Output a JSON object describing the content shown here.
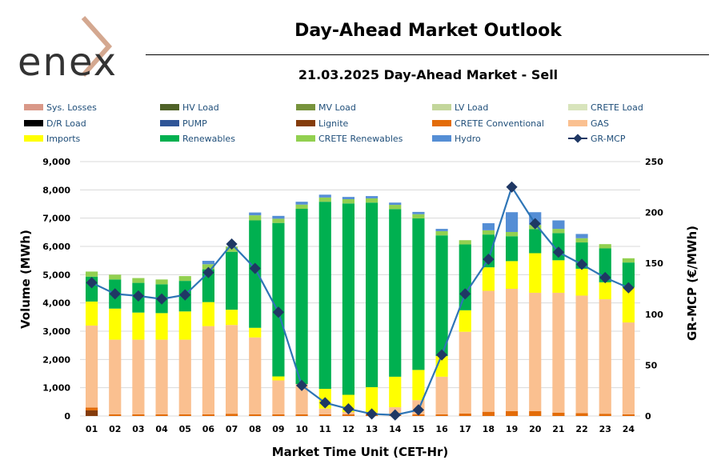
{
  "header": {
    "logo_text": "enex",
    "title": "Day-Ahead Market Outlook",
    "subtitle": "21.03.2025  Day-Ahead Market - Sell"
  },
  "chart_data": {
    "type": "bar",
    "title": "21.03.2025  Day-Ahead Market - Sell",
    "xlabel": "Market Time Unit (CET-Hr)",
    "ylabel": "Volume (MWh)",
    "y2label": "GR-MCP (€/MWh)",
    "ylim": [
      0,
      9000
    ],
    "y2lim": [
      0,
      250
    ],
    "yticks": [
      "0",
      "1,000",
      "2,000",
      "3,000",
      "4,000",
      "5,000",
      "6,000",
      "7,000",
      "8,000",
      "9,000"
    ],
    "y2ticks": [
      "0",
      "50",
      "100",
      "150",
      "200",
      "250"
    ],
    "grid": true,
    "legend_position": "top",
    "categories": [
      "01",
      "02",
      "03",
      "04",
      "05",
      "06",
      "07",
      "08",
      "09",
      "10",
      "11",
      "12",
      "13",
      "14",
      "15",
      "16",
      "17",
      "18",
      "19",
      "20",
      "21",
      "22",
      "23",
      "24"
    ],
    "series": [
      {
        "name": "Sys. Losses",
        "kind": "bar",
        "color": "#d99888",
        "values": [
          0,
          0,
          0,
          0,
          0,
          0,
          0,
          0,
          0,
          0,
          0,
          0,
          0,
          0,
          0,
          0,
          0,
          0,
          0,
          0,
          0,
          0,
          0,
          0
        ]
      },
      {
        "name": "HV Load",
        "kind": "bar",
        "color": "#4f6228",
        "values": [
          0,
          0,
          0,
          0,
          0,
          0,
          0,
          0,
          0,
          0,
          0,
          0,
          0,
          0,
          0,
          0,
          0,
          0,
          0,
          0,
          0,
          0,
          0,
          0
        ]
      },
      {
        "name": "MV Load",
        "kind": "bar",
        "color": "#77933c",
        "values": [
          0,
          0,
          0,
          0,
          0,
          0,
          0,
          0,
          0,
          0,
          0,
          0,
          0,
          0,
          0,
          0,
          0,
          0,
          0,
          0,
          0,
          0,
          0,
          0
        ]
      },
      {
        "name": "LV Load",
        "kind": "bar",
        "color": "#c3d69b",
        "values": [
          0,
          0,
          0,
          0,
          0,
          0,
          0,
          0,
          0,
          0,
          0,
          0,
          0,
          0,
          0,
          0,
          0,
          0,
          0,
          0,
          0,
          0,
          0,
          0
        ]
      },
      {
        "name": "CRETE Load",
        "kind": "bar",
        "color": "#d8e4bc",
        "values": [
          0,
          0,
          0,
          0,
          0,
          0,
          0,
          0,
          0,
          0,
          0,
          0,
          0,
          0,
          0,
          0,
          0,
          0,
          0,
          0,
          0,
          0,
          0,
          0
        ]
      },
      {
        "name": "D/R Load",
        "kind": "bar",
        "color": "#000000",
        "values": [
          0,
          0,
          0,
          0,
          0,
          0,
          0,
          0,
          0,
          0,
          0,
          0,
          0,
          0,
          0,
          0,
          0,
          0,
          0,
          0,
          0,
          0,
          0,
          0
        ]
      },
      {
        "name": "PUMP",
        "kind": "bar",
        "color": "#2f5597",
        "values": [
          0,
          0,
          0,
          0,
          0,
          0,
          0,
          0,
          0,
          0,
          0,
          0,
          0,
          0,
          0,
          0,
          0,
          0,
          0,
          0,
          0,
          0,
          0,
          0
        ]
      },
      {
        "name": "Lignite",
        "kind": "bar",
        "color": "#843c0c",
        "values": [
          200,
          0,
          0,
          0,
          0,
          0,
          0,
          0,
          0,
          0,
          0,
          0,
          0,
          0,
          0,
          0,
          0,
          0,
          0,
          0,
          0,
          0,
          0,
          0
        ]
      },
      {
        "name": "CRETE Conventional",
        "kind": "bar",
        "color": "#e36c09",
        "values": [
          100,
          60,
          60,
          60,
          60,
          60,
          80,
          60,
          60,
          60,
          60,
          60,
          60,
          60,
          60,
          60,
          90,
          150,
          170,
          170,
          120,
          100,
          80,
          60
        ]
      },
      {
        "name": "GAS",
        "kind": "bar",
        "color": "#fac090",
        "values": [
          2900,
          2640,
          2640,
          2640,
          2640,
          3120,
          3140,
          2720,
          1200,
          1070,
          200,
          80,
          60,
          250,
          500,
          1330,
          2890,
          4280,
          4330,
          4190,
          4240,
          4160,
          4050,
          3250
        ]
      },
      {
        "name": "Imports",
        "kind": "bar",
        "color": "#ffff00",
        "values": [
          850,
          1100,
          960,
          940,
          1000,
          850,
          540,
          340,
          140,
          0,
          700,
          610,
          900,
          1080,
          1070,
          730,
          760,
          830,
          980,
          1400,
          1150,
          950,
          600,
          1240
        ]
      },
      {
        "name": "Renewables",
        "kind": "bar",
        "color": "#00b050",
        "values": [
          880,
          1030,
          1050,
          1020,
          1080,
          1160,
          2050,
          3800,
          5430,
          6200,
          6620,
          6770,
          6530,
          5930,
          5360,
          4270,
          2330,
          1160,
          880,
          850,
          960,
          930,
          1200,
          880
        ]
      },
      {
        "name": "CRETE Renewables",
        "kind": "bar",
        "color": "#92d050",
        "values": [
          180,
          170,
          170,
          170,
          170,
          180,
          180,
          180,
          150,
          150,
          150,
          150,
          150,
          150,
          150,
          150,
          150,
          150,
          150,
          150,
          150,
          150,
          150,
          150
        ]
      },
      {
        "name": "Hydro",
        "kind": "bar",
        "color": "#558ed5",
        "values": [
          0,
          0,
          0,
          0,
          0,
          120,
          0,
          100,
          100,
          100,
          100,
          80,
          80,
          80,
          80,
          80,
          0,
          250,
          700,
          450,
          300,
          150,
          0,
          0
        ]
      },
      {
        "name": "GR-MCP",
        "kind": "line",
        "axis": "y2",
        "color": "#1f3864",
        "values": [
          131,
          120,
          118,
          115,
          119,
          141,
          169,
          145,
          102,
          30,
          13,
          7,
          2,
          1,
          6,
          60,
          120,
          154,
          225,
          189,
          161,
          149,
          136,
          126
        ]
      }
    ]
  }
}
